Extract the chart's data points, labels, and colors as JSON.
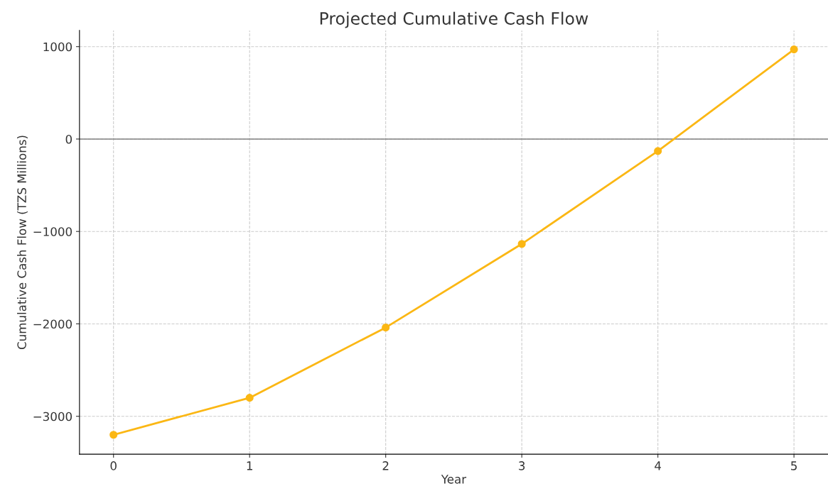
{
  "chart_data": {
    "type": "line",
    "title": "Projected Cumulative Cash Flow",
    "xlabel": "Year",
    "ylabel": "Cumulative Cash Flow (TZS Millions)",
    "x": [
      0,
      1,
      2,
      3,
      4,
      5
    ],
    "series": [
      {
        "color": "#fbb714",
        "values": [
          -3200,
          -2800,
          -2040,
          -1135,
          -130,
          970
        ]
      }
    ],
    "xlim": [
      -0.25,
      5.25
    ],
    "xticks": [
      0,
      1,
      2,
      3,
      4,
      5
    ],
    "ylim": [
      -3410,
      1175
    ],
    "yticks": [
      {
        "value": -3000,
        "label": "−3000"
      },
      {
        "value": -2000,
        "label": "−2000"
      },
      {
        "value": -1000,
        "label": "−1000"
      },
      0,
      1000
    ],
    "ref_lines": [
      {
        "axis": "y",
        "value": 0,
        "color": "#808080"
      }
    ],
    "grid": true,
    "marker": "circle",
    "line_style": "solid"
  }
}
